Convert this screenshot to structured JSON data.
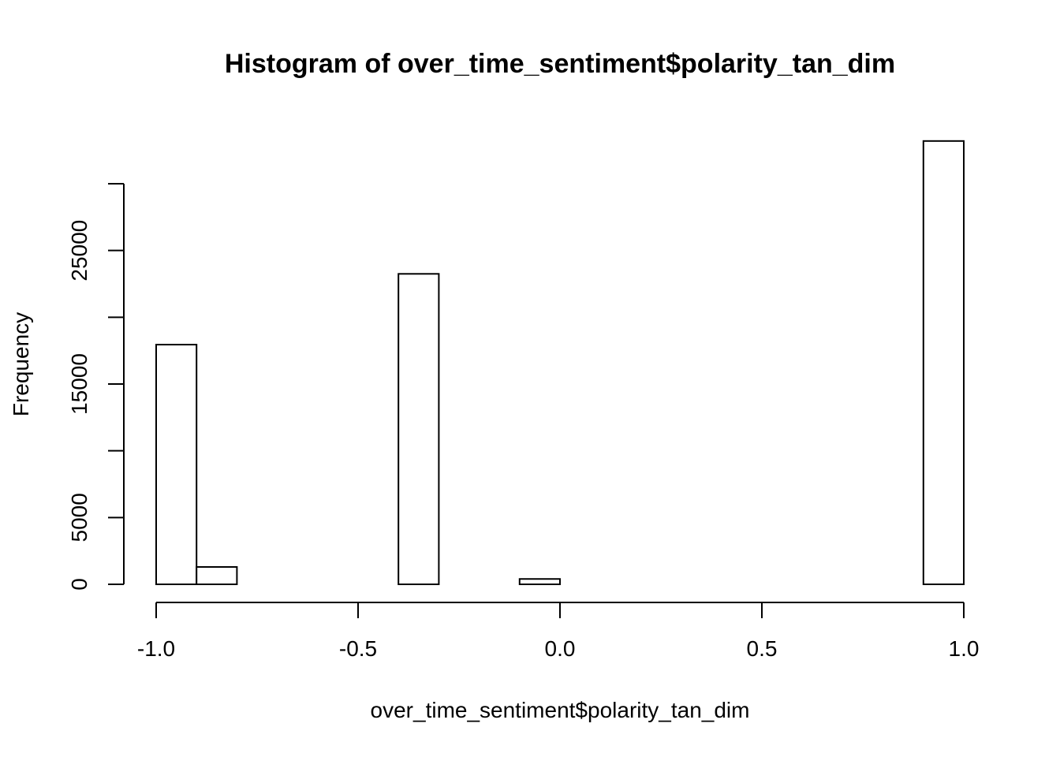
{
  "chart_data": {
    "type": "bar",
    "title": "Histogram of over_time_sentiment$polarity_tan_dim",
    "xlabel": "over_time_sentiment$polarity_tan_dim",
    "ylabel": "Frequency",
    "xlim": [
      -1.0,
      1.0
    ],
    "ylim": [
      0,
      30000
    ],
    "x_ticks": [
      -1.0,
      -0.5,
      0.0,
      0.5,
      1.0
    ],
    "x_tick_labels": [
      "-1.0",
      "-0.5",
      "0.0",
      "0.5",
      "1.0"
    ],
    "y_ticks": [
      0,
      5000,
      10000,
      15000,
      20000,
      25000,
      30000
    ],
    "y_tick_labels": [
      "0",
      "5000",
      "",
      "15000",
      "",
      "25000",
      ""
    ],
    "bin_edges": [
      -1.0,
      -0.9,
      -0.8,
      -0.7,
      -0.6,
      -0.5,
      -0.4,
      -0.3,
      -0.2,
      -0.1,
      0.0,
      0.1,
      0.2,
      0.3,
      0.4,
      0.5,
      0.6,
      0.7,
      0.8,
      0.9,
      1.0
    ],
    "counts": [
      17950,
      1300,
      0,
      0,
      0,
      0,
      23250,
      0,
      0,
      400,
      0,
      0,
      0,
      0,
      0,
      0,
      0,
      0,
      0,
      33200
    ],
    "grid": false,
    "legend": "none"
  }
}
